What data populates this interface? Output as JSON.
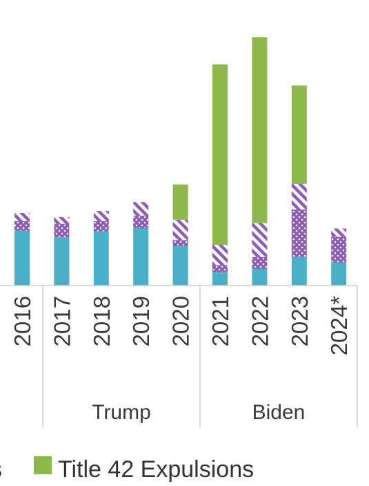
{
  "chart_data": {
    "type": "bar",
    "stacked": true,
    "categories": [
      "2016",
      "2017",
      "2018",
      "2019",
      "2020",
      "2021",
      "2022",
      "2023",
      "2024*"
    ],
    "groups": [
      {
        "label": "Trump",
        "categories": [
          "2017",
          "2018",
          "2019",
          "2020"
        ]
      },
      {
        "label": "Biden",
        "categories": [
          "2021",
          "2022",
          "2023",
          "2024*"
        ]
      }
    ],
    "series": [
      {
        "name": "",
        "pattern": "solid",
        "color": "#4ab0c8",
        "values": [
          0.81,
          0.71,
          0.8,
          0.85,
          0.58,
          0.2,
          0.25,
          0.42,
          0.34
        ]
      },
      {
        "name": "",
        "pattern": "dots",
        "color": "#8e5cb8",
        "values": [
          0.14,
          0.2,
          0.15,
          0.18,
          0.09,
          0.1,
          0.17,
          0.7,
          0.38
        ]
      },
      {
        "name": "",
        "pattern": "stripes",
        "color": "#8e5cb8",
        "values": [
          0.12,
          0.1,
          0.15,
          0.2,
          0.3,
          0.3,
          0.5,
          0.38,
          0.12
        ]
      },
      {
        "name": "Title 42 Expulsions",
        "pattern": "solid",
        "color": "#8fb84a",
        "values": [
          0,
          0,
          0,
          0,
          0.52,
          2.66,
          2.74,
          1.45,
          0
        ]
      }
    ],
    "ylim": [
      0,
      3.8
    ],
    "grid": false,
    "legend_position": "bottom"
  }
}
